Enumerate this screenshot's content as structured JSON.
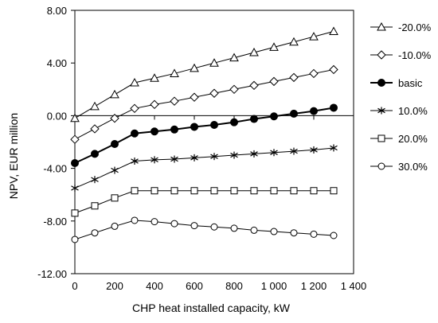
{
  "chart_data": {
    "type": "line",
    "title": "",
    "xlabel": "CHP heat installed capacity, kW",
    "ylabel": "NPV, EUR million",
    "xlim": [
      0,
      1400
    ],
    "ylim": [
      -12,
      8
    ],
    "grid": false,
    "legend_position": "right",
    "x_ticks": [
      0,
      200,
      400,
      600,
      800,
      1000,
      1200,
      1400
    ],
    "x_tick_labels": [
      "0",
      "200",
      "400",
      "600",
      "800",
      "1 000",
      "1 200",
      "1 400"
    ],
    "y_ticks": [
      8,
      4,
      0,
      -4,
      -8,
      -12
    ],
    "y_tick_labels": [
      "8.00",
      "4.00",
      "0.00",
      "-4.00",
      "-8.00",
      "-12.00"
    ],
    "x": [
      0,
      100,
      200,
      300,
      400,
      500,
      600,
      700,
      800,
      900,
      1000,
      1100,
      1200,
      1300
    ],
    "series": [
      {
        "name": "-20.0%",
        "marker": "triangle",
        "values": [
          -0.2,
          0.7,
          1.6,
          2.5,
          2.85,
          3.2,
          3.6,
          4.0,
          4.4,
          4.8,
          5.2,
          5.6,
          6.0,
          6.4
        ]
      },
      {
        "name": "-10.0%",
        "marker": "diamond",
        "values": [
          -1.8,
          -1.0,
          -0.2,
          0.55,
          0.85,
          1.1,
          1.4,
          1.7,
          2.0,
          2.3,
          2.6,
          2.9,
          3.2,
          3.5
        ]
      },
      {
        "name": "basic",
        "marker": "filled-circle",
        "values": [
          -3.6,
          -2.9,
          -2.15,
          -1.35,
          -1.2,
          -1.05,
          -0.85,
          -0.7,
          -0.5,
          -0.25,
          -0.05,
          0.15,
          0.35,
          0.6
        ]
      },
      {
        "name": "10.0%",
        "marker": "asterisk",
        "values": [
          -5.5,
          -4.85,
          -4.15,
          -3.45,
          -3.35,
          -3.3,
          -3.2,
          -3.1,
          -3.0,
          -2.9,
          -2.8,
          -2.7,
          -2.6,
          -2.45
        ]
      },
      {
        "name": "20.0%",
        "marker": "square",
        "values": [
          -7.4,
          -6.85,
          -6.25,
          -5.7,
          -5.7,
          -5.7,
          -5.7,
          -5.7,
          -5.7,
          -5.7,
          -5.7,
          -5.7,
          -5.7,
          -5.7
        ]
      },
      {
        "name": "30.0%",
        "marker": "circle",
        "values": [
          -9.4,
          -8.9,
          -8.4,
          -7.95,
          -8.05,
          -8.2,
          -8.35,
          -8.45,
          -8.55,
          -8.7,
          -8.8,
          -8.9,
          -9.0,
          -9.1
        ]
      }
    ]
  }
}
